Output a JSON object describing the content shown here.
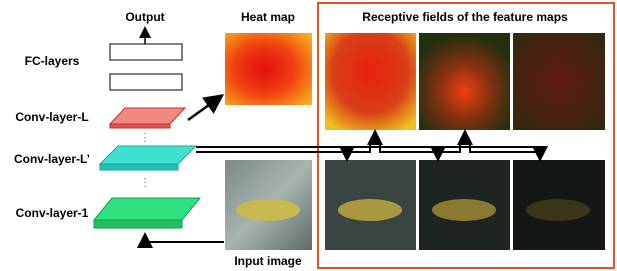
{
  "labels": {
    "output": "Output",
    "heat_map": "Heat map",
    "receptive_fields": "Receptive fields of the feature maps",
    "fc_layers": "FC-layers",
    "conv_layer_l": "Conv-layer-L",
    "conv_layer_l_prime": "Conv-layer-L’",
    "conv_layer_1": "Conv-layer-1",
    "input_image": "Input image"
  }
}
